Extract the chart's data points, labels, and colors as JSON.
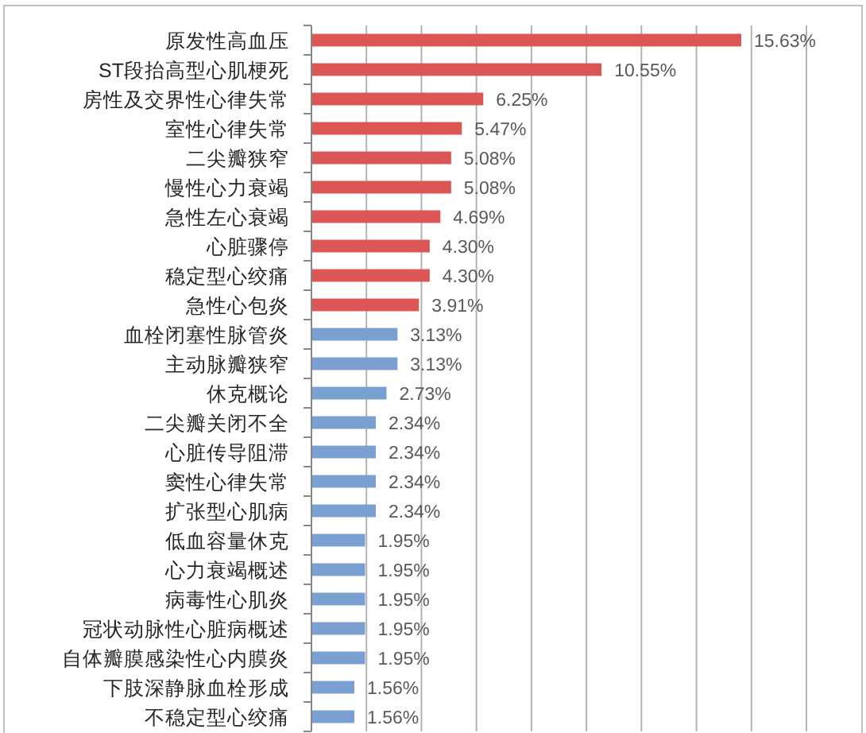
{
  "chart_data": {
    "type": "bar",
    "orientation": "horizontal",
    "categories": [
      "原发性高血压",
      "ST段抬高型心肌梗死",
      "房性及交界性心律失常",
      "室性心律失常",
      "二尖瓣狭窄",
      "慢性心力衰竭",
      "急性左心衰竭",
      "心脏骤停",
      "稳定型心绞痛",
      "急性心包炎",
      "血栓闭塞性脉管炎",
      "主动脉瓣狭窄",
      "休克概论",
      "二尖瓣关闭不全",
      "心脏传导阻滞",
      "窦性心律失常",
      "扩张型心肌病",
      "低血容量休克",
      "心力衰竭概述",
      "病毒性心肌炎",
      "冠状动脉性心脏病概述",
      "自体瓣膜感染性心内膜炎",
      "下肢深静脉血栓形成",
      "不稳定型心绞痛"
    ],
    "values": [
      15.63,
      10.55,
      6.25,
      5.47,
      5.08,
      5.08,
      4.69,
      4.3,
      4.3,
      3.91,
      3.13,
      3.13,
      2.73,
      2.34,
      2.34,
      2.34,
      2.34,
      1.95,
      1.95,
      1.95,
      1.95,
      1.95,
      1.56,
      1.56
    ],
    "value_labels": [
      "15.63%",
      "10.55%",
      "6.25%",
      "5.47%",
      "5.08%",
      "5.08%",
      "4.69%",
      "4.30%",
      "4.30%",
      "3.91%",
      "3.13%",
      "3.13%",
      "2.73%",
      "2.34%",
      "2.34%",
      "2.34%",
      "2.34%",
      "1.95%",
      "1.95%",
      "1.95%",
      "1.95%",
      "1.95%",
      "1.56%",
      "1.56%"
    ],
    "colors": [
      "#dc5656",
      "#dc5656",
      "#dc5656",
      "#dc5656",
      "#dc5656",
      "#dc5656",
      "#dc5656",
      "#dc5656",
      "#dc5656",
      "#dc5656",
      "#7a9fd2",
      "#7a9fd2",
      "#7a9fd2",
      "#7a9fd2",
      "#7a9fd2",
      "#7a9fd2",
      "#7a9fd2",
      "#7a9fd2",
      "#7a9fd2",
      "#7a9fd2",
      "#7a9fd2",
      "#7a9fd2",
      "#7a9fd2",
      "#7a9fd2"
    ],
    "xlim": [
      0,
      18
    ],
    "xticks": [
      {
        "value": 0,
        "label": null
      },
      {
        "value": 2,
        "label": null
      },
      {
        "value": 4,
        "label": null
      },
      {
        "value": 6,
        "label": null
      },
      {
        "value": 8,
        "label": null
      },
      {
        "value": 10,
        "label": null
      },
      {
        "value": 12,
        "label": null
      },
      {
        "value": 14,
        "label": null
      },
      {
        "value": 16,
        "label": null
      },
      {
        "value": 18,
        "label": null
      }
    ],
    "grid": "x",
    "tick_labels": "y"
  }
}
